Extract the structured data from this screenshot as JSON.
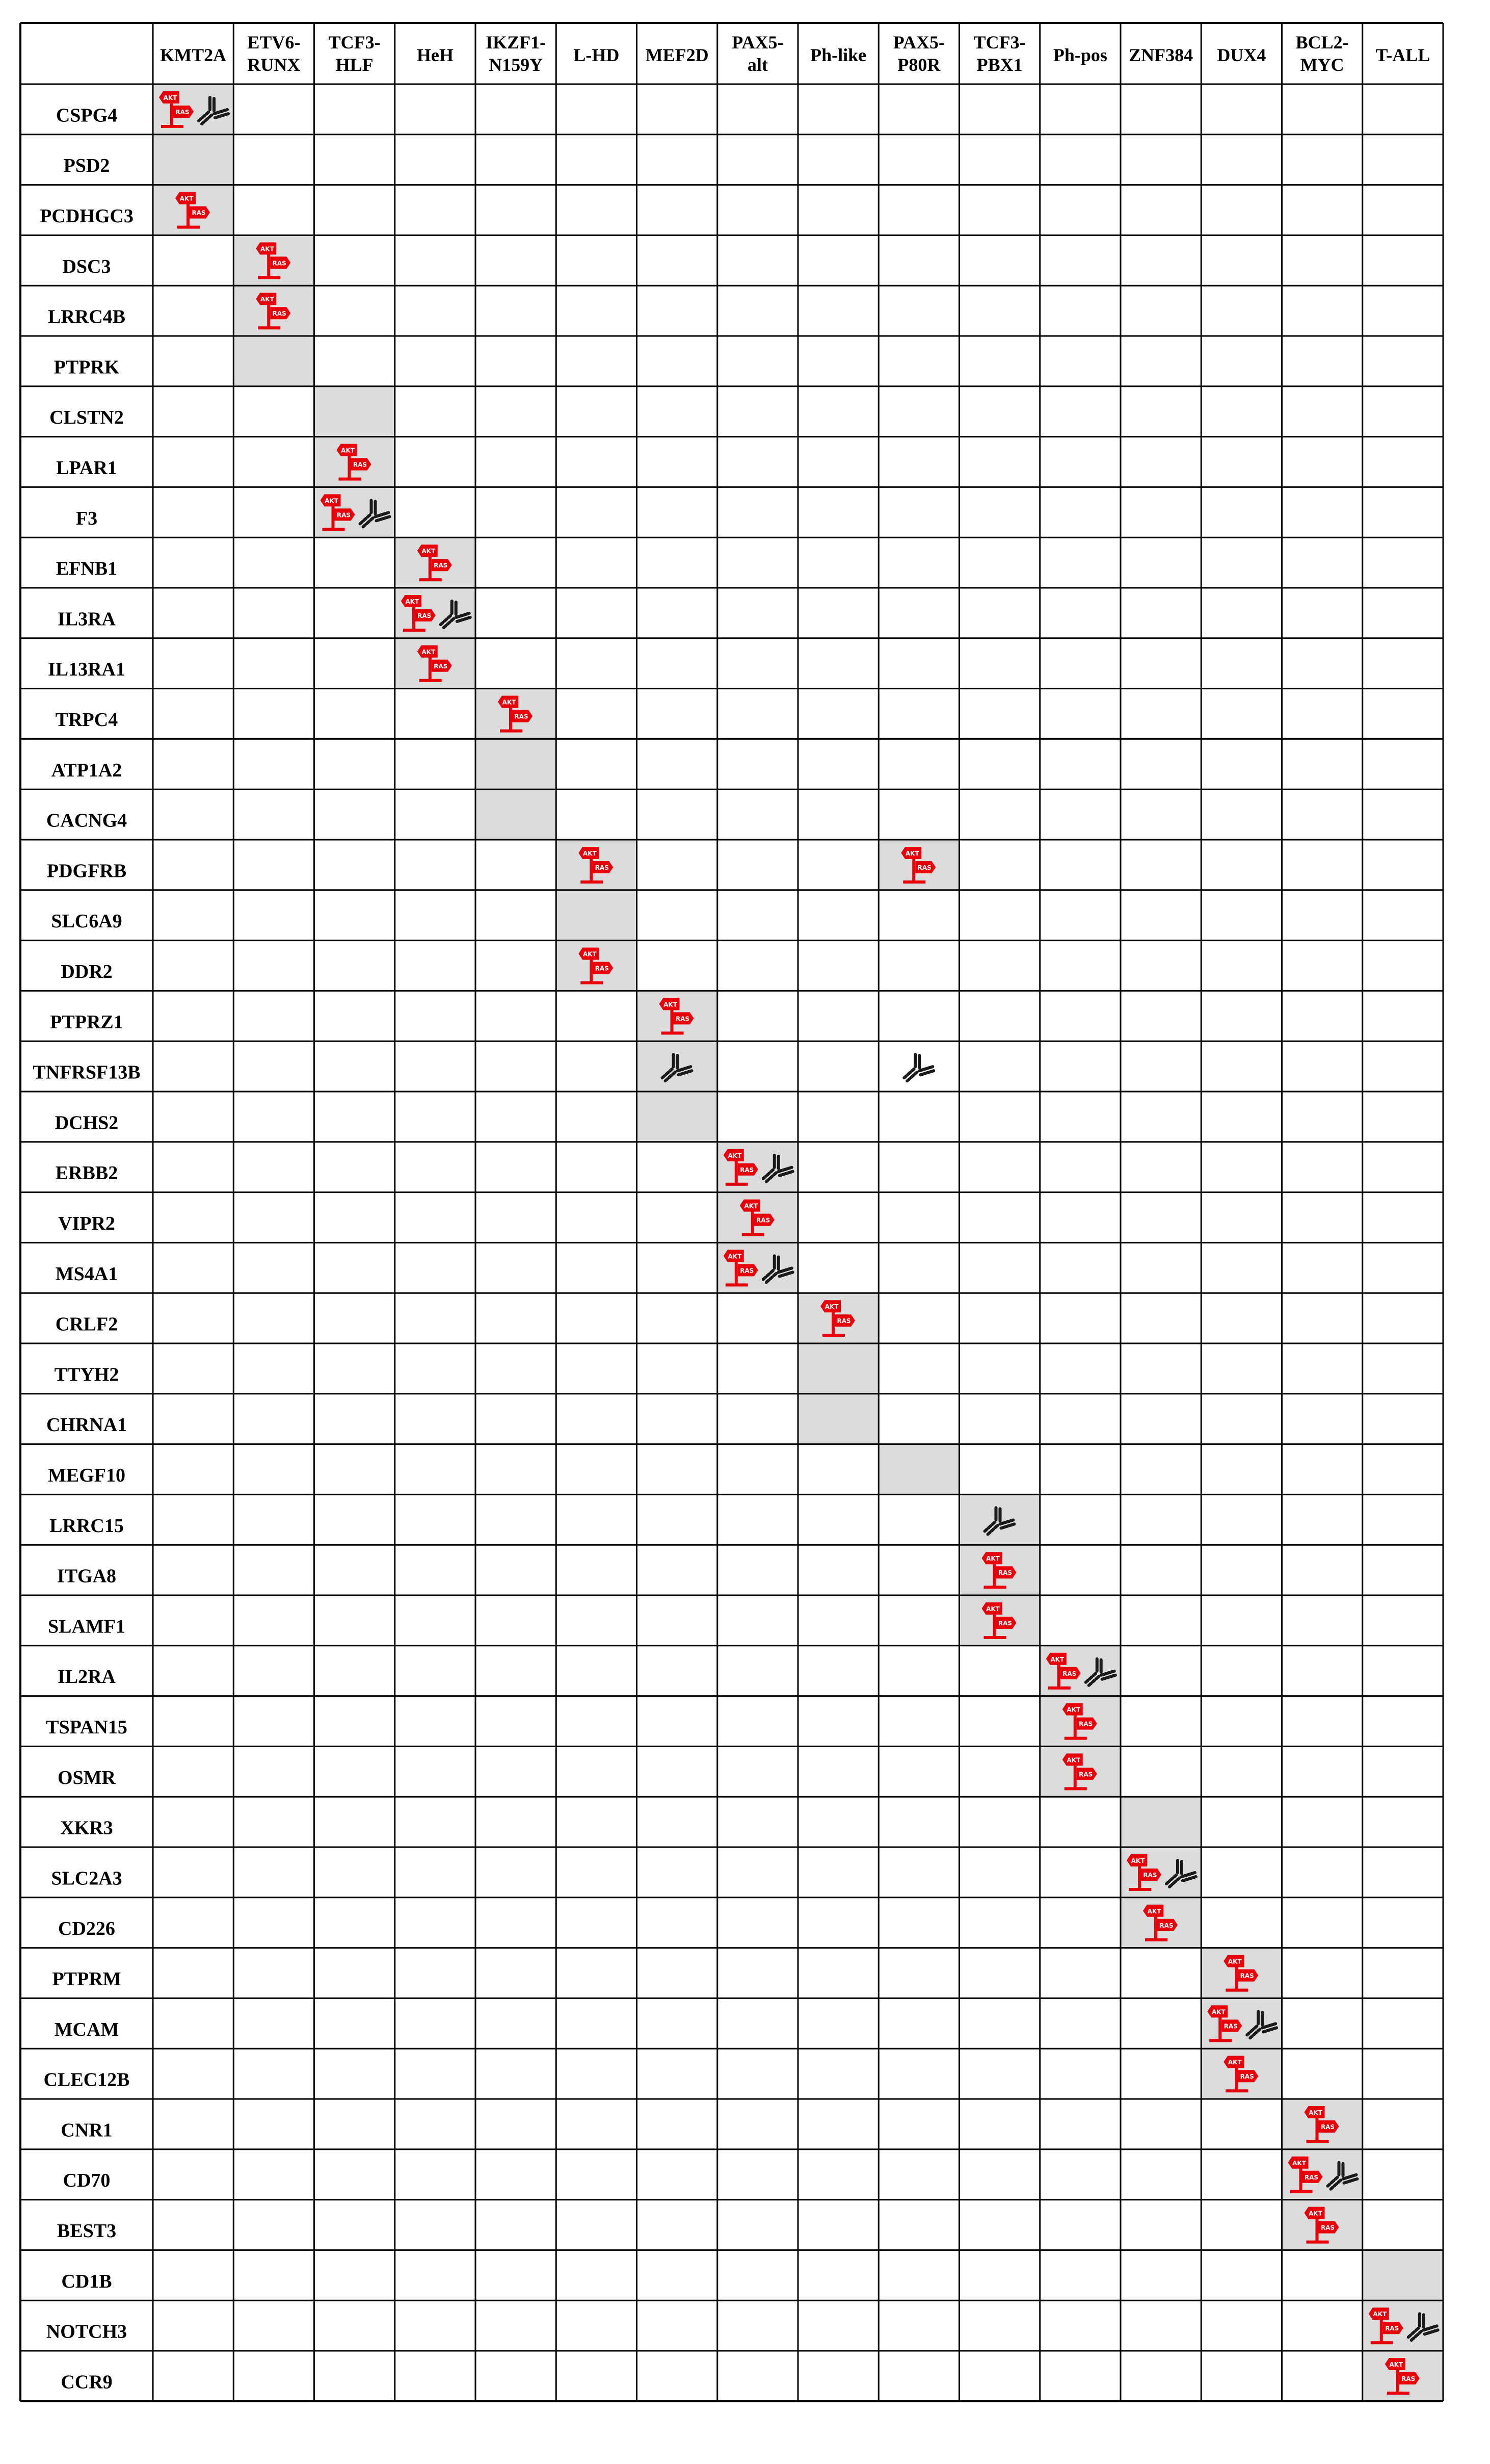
{
  "columns": [
    "KMT2A",
    "ETV6-\nRUNX",
    "TCF3-\nHLF",
    "HeH",
    "IKZF1-\nN159Y",
    "L-HD",
    "MEF2D",
    "PAX5-\nalt",
    "Ph-like",
    "PAX5-\nP80R",
    "TCF3-\nPBX1",
    "Ph-pos",
    "ZNF384",
    "DUX4",
    "BCL2-\nMYC",
    "T-ALL"
  ],
  "rows": [
    {
      "gene": "CSPG4",
      "shade": 0,
      "marks": [
        {
          "col": 0,
          "sign": true,
          "ab": true
        }
      ]
    },
    {
      "gene": "PSD2",
      "shade": 0,
      "marks": []
    },
    {
      "gene": "PCDHGC3",
      "shade": 0,
      "marks": [
        {
          "col": 0,
          "sign": true,
          "ab": false
        }
      ]
    },
    {
      "gene": "DSC3",
      "shade": 1,
      "marks": [
        {
          "col": 1,
          "sign": true,
          "ab": false
        }
      ]
    },
    {
      "gene": "LRRC4B",
      "shade": 1,
      "marks": [
        {
          "col": 1,
          "sign": true,
          "ab": false
        }
      ]
    },
    {
      "gene": "PTPRK",
      "shade": 1,
      "marks": []
    },
    {
      "gene": "CLSTN2",
      "shade": 2,
      "marks": []
    },
    {
      "gene": "LPAR1",
      "shade": 2,
      "marks": [
        {
          "col": 2,
          "sign": true,
          "ab": false
        }
      ]
    },
    {
      "gene": "F3",
      "shade": 2,
      "marks": [
        {
          "col": 2,
          "sign": true,
          "ab": true
        }
      ]
    },
    {
      "gene": "EFNB1",
      "shade": 3,
      "marks": [
        {
          "col": 3,
          "sign": true,
          "ab": false
        }
      ]
    },
    {
      "gene": "IL3RA",
      "shade": 3,
      "marks": [
        {
          "col": 3,
          "sign": true,
          "ab": true
        }
      ]
    },
    {
      "gene": "IL13RA1",
      "shade": 3,
      "marks": [
        {
          "col": 3,
          "sign": true,
          "ab": false
        }
      ]
    },
    {
      "gene": "TRPC4",
      "shade": 4,
      "marks": [
        {
          "col": 4,
          "sign": true,
          "ab": false
        }
      ]
    },
    {
      "gene": "ATP1A2",
      "shade": 4,
      "marks": []
    },
    {
      "gene": "CACNG4",
      "shade": 4,
      "marks": []
    },
    {
      "gene": "PDGFRB",
      "shade": 5,
      "extraShade": 9,
      "marks": [
        {
          "col": 5,
          "sign": true,
          "ab": false
        },
        {
          "col": 9,
          "sign": true,
          "ab": false
        }
      ]
    },
    {
      "gene": "SLC6A9",
      "shade": 5,
      "marks": []
    },
    {
      "gene": "DDR2",
      "shade": 5,
      "marks": [
        {
          "col": 5,
          "sign": true,
          "ab": false
        }
      ]
    },
    {
      "gene": "PTPRZ1",
      "shade": 6,
      "marks": [
        {
          "col": 6,
          "sign": true,
          "ab": false
        }
      ]
    },
    {
      "gene": "TNFRSF13B",
      "shade": 6,
      "marks": [
        {
          "col": 6,
          "sign": false,
          "ab": true
        },
        {
          "col": 9,
          "sign": false,
          "ab": true
        }
      ]
    },
    {
      "gene": "DCHS2",
      "shade": 6,
      "marks": []
    },
    {
      "gene": "ERBB2",
      "shade": 7,
      "marks": [
        {
          "col": 7,
          "sign": true,
          "ab": true
        }
      ]
    },
    {
      "gene": "VIPR2",
      "shade": 7,
      "marks": [
        {
          "col": 7,
          "sign": true,
          "ab": false
        }
      ]
    },
    {
      "gene": "MS4A1",
      "shade": 7,
      "marks": [
        {
          "col": 7,
          "sign": true,
          "ab": true
        }
      ]
    },
    {
      "gene": "CRLF2",
      "shade": 8,
      "marks": [
        {
          "col": 8,
          "sign": true,
          "ab": false
        }
      ]
    },
    {
      "gene": "TTYH2",
      "shade": 8,
      "marks": []
    },
    {
      "gene": "CHRNA1",
      "shade": 8,
      "marks": []
    },
    {
      "gene": "MEGF10",
      "shade": 9,
      "marks": []
    },
    {
      "gene": "LRRC15",
      "shade": 10,
      "marks": [
        {
          "col": 10,
          "sign": false,
          "ab": true
        }
      ]
    },
    {
      "gene": "ITGA8",
      "shade": 10,
      "marks": [
        {
          "col": 10,
          "sign": true,
          "ab": false
        }
      ]
    },
    {
      "gene": "SLAMF1",
      "shade": 10,
      "marks": [
        {
          "col": 10,
          "sign": true,
          "ab": false
        }
      ]
    },
    {
      "gene": "IL2RA",
      "shade": 11,
      "marks": [
        {
          "col": 11,
          "sign": true,
          "ab": true
        }
      ]
    },
    {
      "gene": "TSPAN15",
      "shade": 11,
      "marks": [
        {
          "col": 11,
          "sign": true,
          "ab": false
        }
      ]
    },
    {
      "gene": "OSMR",
      "shade": 11,
      "marks": [
        {
          "col": 11,
          "sign": true,
          "ab": false
        }
      ]
    },
    {
      "gene": "XKR3",
      "shade": 12,
      "marks": []
    },
    {
      "gene": "SLC2A3",
      "shade": 12,
      "marks": [
        {
          "col": 12,
          "sign": true,
          "ab": true
        }
      ]
    },
    {
      "gene": "CD226",
      "shade": 12,
      "marks": [
        {
          "col": 12,
          "sign": true,
          "ab": false
        }
      ]
    },
    {
      "gene": "PTPRM",
      "shade": 13,
      "marks": [
        {
          "col": 13,
          "sign": true,
          "ab": false
        }
      ]
    },
    {
      "gene": "MCAM",
      "shade": 13,
      "marks": [
        {
          "col": 13,
          "sign": true,
          "ab": true
        }
      ]
    },
    {
      "gene": "CLEC12B",
      "shade": 13,
      "marks": [
        {
          "col": 13,
          "sign": true,
          "ab": false
        }
      ]
    },
    {
      "gene": "CNR1",
      "shade": 14,
      "marks": [
        {
          "col": 14,
          "sign": true,
          "ab": false
        }
      ]
    },
    {
      "gene": "CD70",
      "shade": 14,
      "marks": [
        {
          "col": 14,
          "sign": true,
          "ab": true
        }
      ]
    },
    {
      "gene": "BEST3",
      "shade": 14,
      "marks": [
        {
          "col": 14,
          "sign": true,
          "ab": false
        }
      ]
    },
    {
      "gene": "CD1B",
      "shade": 15,
      "marks": []
    },
    {
      "gene": "NOTCH3",
      "shade": 15,
      "marks": [
        {
          "col": 15,
          "sign": true,
          "ab": true
        }
      ]
    },
    {
      "gene": "CCR9",
      "shade": 15,
      "marks": [
        {
          "col": 15,
          "sign": true,
          "ab": false
        }
      ]
    }
  ],
  "sign_labels": {
    "top": "AKT",
    "bottom": "RAS"
  },
  "colors": {
    "shade": "#dcdcdc",
    "line": "#000000",
    "sign": "#e8000b",
    "antibody": "#1a1a1a",
    "background": "#ffffff"
  },
  "icons": {
    "sign": "akt-ras-signpost-icon",
    "antibody": "antibody-icon"
  }
}
